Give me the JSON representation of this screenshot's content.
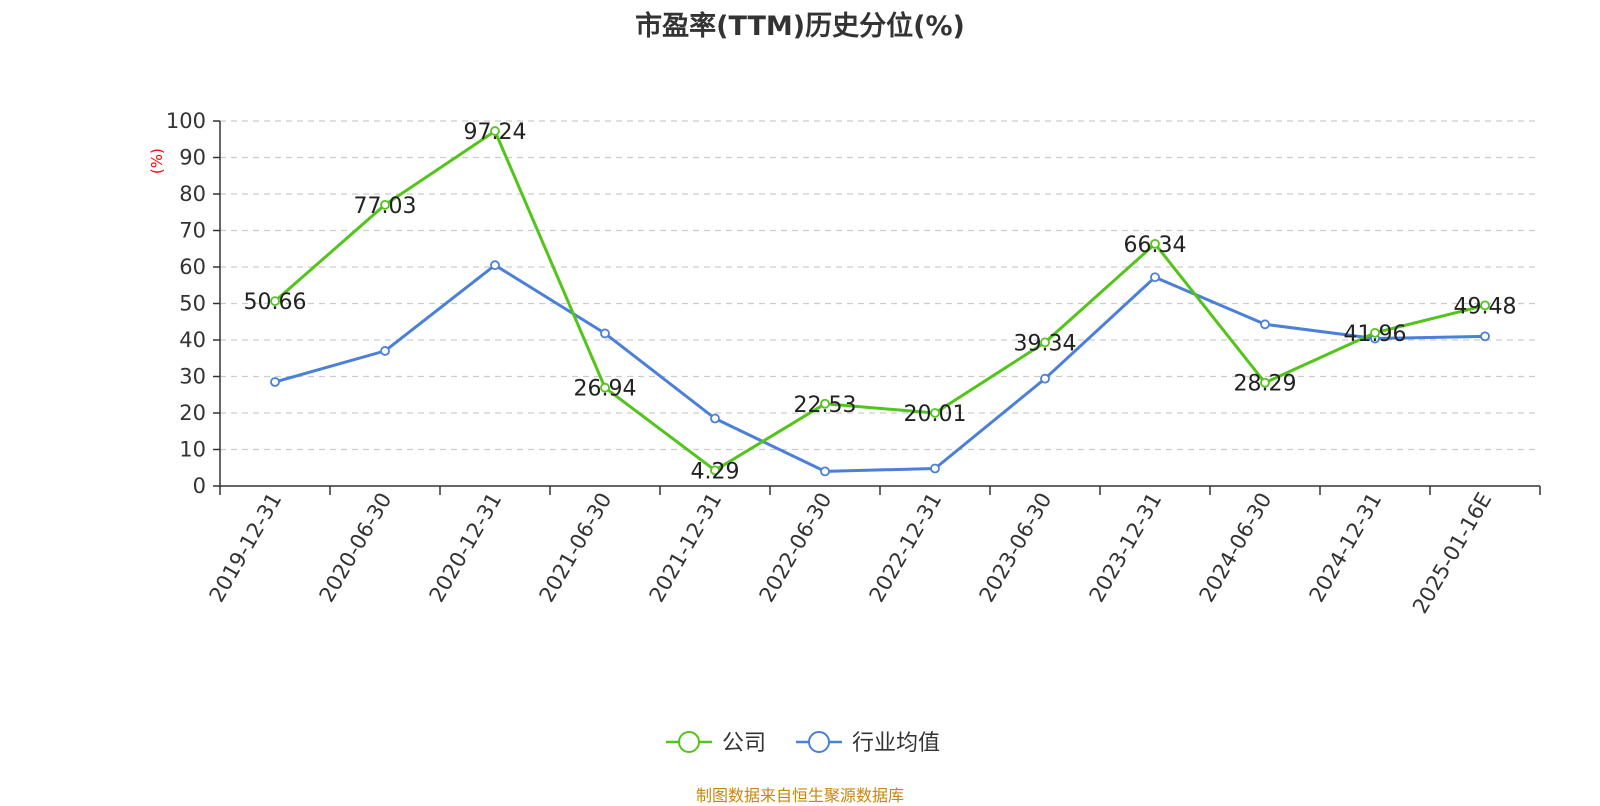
{
  "title": "市盈率(TTM)历史分位(%)",
  "source": "制图数据来自恒生聚源数据库",
  "colors": {
    "company": "#52c41a",
    "industry": "#4a80d8",
    "axis": "#333333",
    "grid": "#cccccc",
    "ylabel": "#ff0000",
    "text": "#222222"
  },
  "chart_data": {
    "type": "line",
    "title": "市盈率(TTM)历史分位(%)",
    "xlabel": "",
    "ylabel": "(%)",
    "ylim": [
      0,
      100
    ],
    "yticks": [
      0,
      10,
      20,
      30,
      40,
      50,
      60,
      70,
      80,
      90,
      100
    ],
    "grid": true,
    "legend_position": "bottom-center",
    "categories": [
      "2019-12-31",
      "2020-06-30",
      "2020-12-31",
      "2021-06-30",
      "2021-12-31",
      "2022-06-30",
      "2022-12-31",
      "2023-06-30",
      "2023-12-31",
      "2024-06-30",
      "2024-12-31",
      "2025-01-16E"
    ],
    "series": [
      {
        "name": "公司",
        "values": [
          50.66,
          77.03,
          97.24,
          26.94,
          4.29,
          22.53,
          20.01,
          39.34,
          66.34,
          28.29,
          41.96,
          49.48
        ],
        "labels": [
          "50.66",
          "77.03",
          "97.24",
          "26.94",
          "4.29",
          "22.53",
          "20.01",
          "39.34",
          "66.34",
          "28.29",
          "41.96",
          "49.48"
        ]
      },
      {
        "name": "行业均值",
        "values": [
          28.5,
          37.0,
          60.5,
          41.8,
          18.5,
          4.0,
          4.8,
          29.4,
          57.2,
          44.3,
          40.4,
          41.0
        ]
      }
    ]
  }
}
